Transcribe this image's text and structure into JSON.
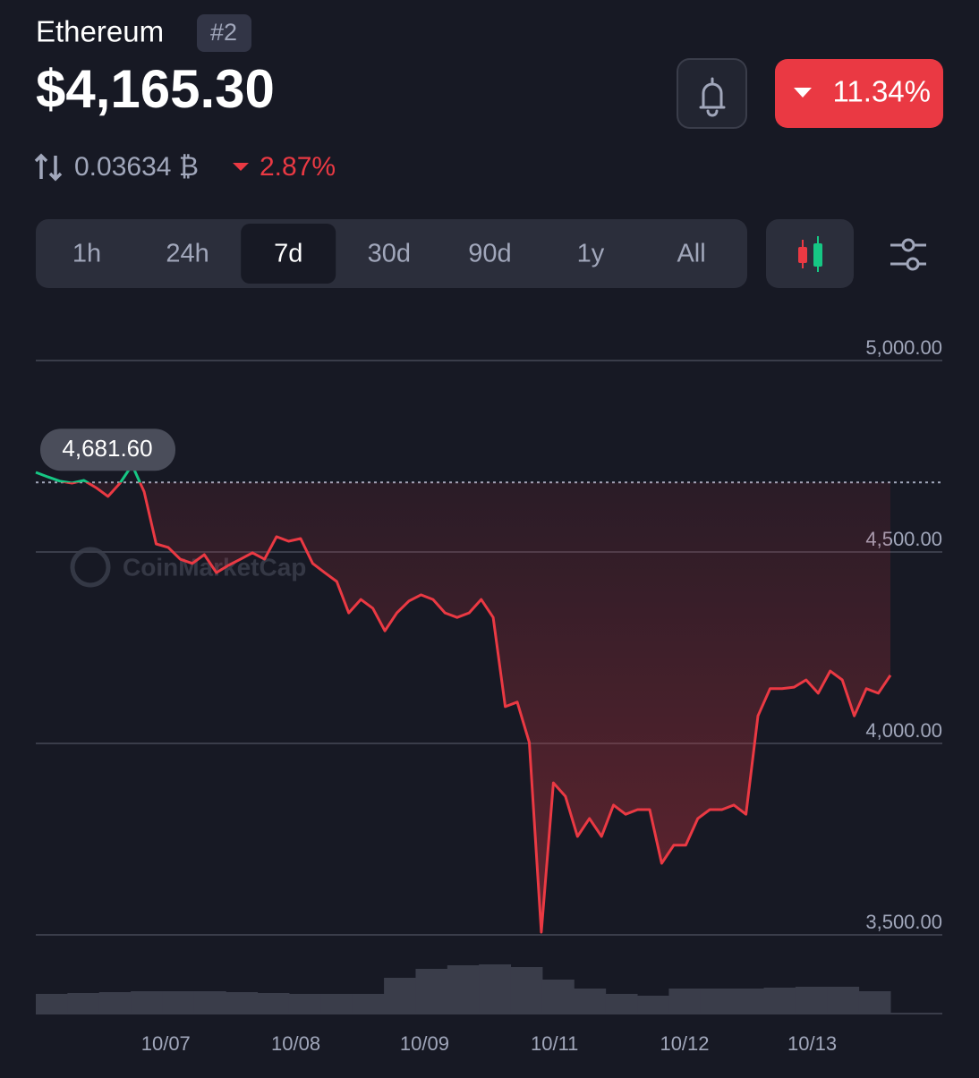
{
  "header": {
    "name": "Ethereum",
    "rank": "#2",
    "price": "$4,165.30",
    "change": "11.34%",
    "btc_price": "0.03634 ₿",
    "btc_change": "2.87%"
  },
  "tabs": [
    "1h",
    "24h",
    "7d",
    "30d",
    "90d",
    "1y",
    "All"
  ],
  "active_tab": "7d",
  "watermark": "CoinMarketCap",
  "chart_data": {
    "type": "line",
    "series": [
      {
        "name": "ETH",
        "color": "#ea3943",
        "up_color": "#16c784",
        "values": [
          4708,
          4696,
          4685,
          4680,
          4687,
          4668,
          4645,
          4680,
          4727,
          4657,
          4521,
          4512,
          4481,
          4470,
          4493,
          4446,
          4465,
          4481,
          4498,
          4481,
          4540,
          4528,
          4535,
          4470,
          4446,
          4423,
          4341,
          4376,
          4353,
          4294,
          4341,
          4372,
          4388,
          4376,
          4341,
          4329,
          4341,
          4376,
          4329,
          4096,
          4108,
          4002,
          3507,
          3897,
          3862,
          3757,
          3804,
          3757,
          3839,
          3815,
          3827,
          3827,
          3687,
          3734,
          3734,
          3804,
          3827,
          3827,
          3839,
          3815,
          4072,
          4143,
          4143,
          4147,
          4166,
          4131,
          4189,
          4166,
          4072,
          4143,
          4131,
          4178
        ]
      }
    ],
    "reference": {
      "value": 4681.6,
      "label": "4,681.60"
    },
    "volume": [
      22,
      23,
      24,
      25,
      25,
      25,
      24,
      23,
      22,
      22,
      22,
      40,
      50,
      54,
      55,
      52,
      38,
      28,
      22,
      20,
      28,
      28,
      28,
      29,
      30,
      30,
      25
    ],
    "ylim": [
      3500,
      5000
    ],
    "yticks": [
      {
        "value": 5000,
        "label": "5,000.00"
      },
      {
        "value": 4500,
        "label": "4,500.00"
      },
      {
        "value": 4000,
        "label": "4,000.00"
      },
      {
        "value": 3500,
        "label": "3,500.00"
      }
    ],
    "xlim": [
      0,
      71
    ],
    "xticks": [
      {
        "value": 10.8,
        "label": "10/07"
      },
      {
        "value": 21.6,
        "label": "10/08"
      },
      {
        "value": 32.3,
        "label": "10/09"
      },
      {
        "value": 43.1,
        "label": "10/11"
      },
      {
        "value": 53.9,
        "label": "10/12"
      },
      {
        "value": 64.5,
        "label": "10/13"
      }
    ],
    "grid": true
  }
}
